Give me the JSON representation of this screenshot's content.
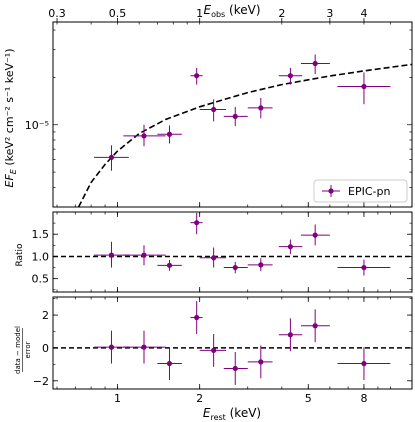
{
  "colors": {
    "data": "#800080",
    "model": "#000000"
  },
  "chart_data": {
    "type": "scatter",
    "x_scale": "log",
    "xlim_rest": [
      0.58,
      12.0
    ],
    "top_axis": {
      "label": "E_obs (keV)",
      "label_main": "E",
      "label_sub": "obs",
      "label_unit": " (keV)",
      "ticks": [
        0.3,
        0.5,
        1,
        2,
        3,
        4
      ],
      "tick_labels": [
        "0.3",
        "0.5",
        "1",
        "2",
        "3",
        "4"
      ]
    },
    "bottom_axis": {
      "label": "E_rest (keV)",
      "label_main": "E",
      "label_sub": "rest",
      "label_unit": " (keV)",
      "ticks": [
        1,
        2,
        5,
        8
      ],
      "tick_labels": [
        "1",
        "2",
        "5",
        "8"
      ]
    },
    "panels": [
      {
        "id": "spectrum",
        "ylabel": "EF_E (keV^2 cm^-2 s^-1 keV^-1)",
        "ylabel_main": "EF",
        "ylabel_sub": "E",
        "ylabel_unit": " (keV² cm⁻² s⁻¹ keV⁻¹)",
        "y_scale": "log",
        "ylim": [
          3e-06,
          4.5e-05
        ],
        "ytick_major": [
          1e-05
        ],
        "ytick_labels": [
          "10⁻⁵"
        ],
        "legend": {
          "label": "EPIC-pn",
          "loc": "lower-right"
        },
        "series": [
          {
            "name": "EPIC-pn",
            "x": [
              0.95,
              1.25,
              1.55,
              1.95,
              2.25,
              2.7,
              3.35,
              4.3,
              5.3,
              8.0
            ],
            "x_low": [
              0.82,
              1.05,
              1.4,
              1.85,
              2.0,
              2.45,
              3.0,
              3.9,
              4.7,
              6.4
            ],
            "x_high": [
              1.1,
              1.5,
              1.72,
              2.05,
              2.5,
              3.0,
              3.7,
              4.75,
              6.0,
              10.0
            ],
            "y": [
              6.2e-06,
              8.5e-06,
              8.7e-06,
              2.05e-05,
              1.25e-05,
              1.13e-05,
              1.28e-05,
              2.05e-05,
              2.45e-05,
              1.75e-05
            ],
            "y_low": [
              5.1e-06,
              7.3e-06,
              7.6e-06,
              1.8e-05,
              1.05e-05,
              9.8e-06,
              1.1e-05,
              1.8e-05,
              2.1e-05,
              1.35e-05
            ],
            "y_high": [
              7.4e-06,
              1e-05,
              9.9e-06,
              2.3e-05,
              1.45e-05,
              1.3e-05,
              1.48e-05,
              2.3e-05,
              2.8e-05,
              2.15e-05
            ]
          }
        ],
        "model": {
          "x": [
            0.72,
            0.8,
            0.9,
            1.0,
            1.2,
            1.5,
            2.0,
            2.5,
            3.0,
            4.0,
            5.0,
            6.0,
            8.0,
            10.0,
            12.0
          ],
          "y": [
            3e-06,
            4.3e-06,
            5.6e-06,
            6.8e-06,
            8.8e-06,
            1.08e-05,
            1.3e-05,
            1.46e-05,
            1.6e-05,
            1.8e-05,
            1.93e-05,
            2.04e-05,
            2.2e-05,
            2.32e-05,
            2.42e-05
          ]
        }
      },
      {
        "id": "ratio",
        "ylabel": "Ratio",
        "ylim": [
          0.2,
          2.0
        ],
        "yticks": [
          0.5,
          1.0,
          1.5
        ],
        "ytick_labels": [
          "0.5",
          "1.0",
          "1.5"
        ],
        "reference_line": 1.0,
        "y": [
          1.03,
          1.03,
          0.8,
          1.76,
          0.97,
          0.75,
          0.81,
          1.22,
          1.48,
          0.75
        ],
        "y_low": [
          0.75,
          0.8,
          0.68,
          1.5,
          0.75,
          0.62,
          0.67,
          1.05,
          1.25,
          0.57
        ],
        "y_high": [
          1.33,
          1.25,
          0.92,
          1.98,
          1.2,
          0.88,
          0.96,
          1.38,
          1.72,
          0.93
        ]
      },
      {
        "id": "residuals",
        "ylabel": "data - model / error",
        "ylabel_num": "data − model",
        "ylabel_den": "error",
        "ylim": [
          -2.5,
          3.1
        ],
        "yticks": [
          -2,
          0,
          2
        ],
        "ytick_labels": [
          "−2",
          "0",
          "2"
        ],
        "reference_line": 0,
        "y": [
          0.05,
          0.05,
          -0.95,
          1.85,
          -0.15,
          -1.25,
          -0.85,
          0.8,
          1.35,
          -0.95
        ],
        "y_low": [
          -0.95,
          -0.95,
          -1.95,
          0.85,
          -1.15,
          -2.25,
          -1.85,
          -0.2,
          0.35,
          -1.95
        ],
        "y_high": [
          1.05,
          1.05,
          0.05,
          2.85,
          0.85,
          -0.25,
          0.15,
          1.8,
          2.35,
          0.05
        ]
      }
    ]
  }
}
